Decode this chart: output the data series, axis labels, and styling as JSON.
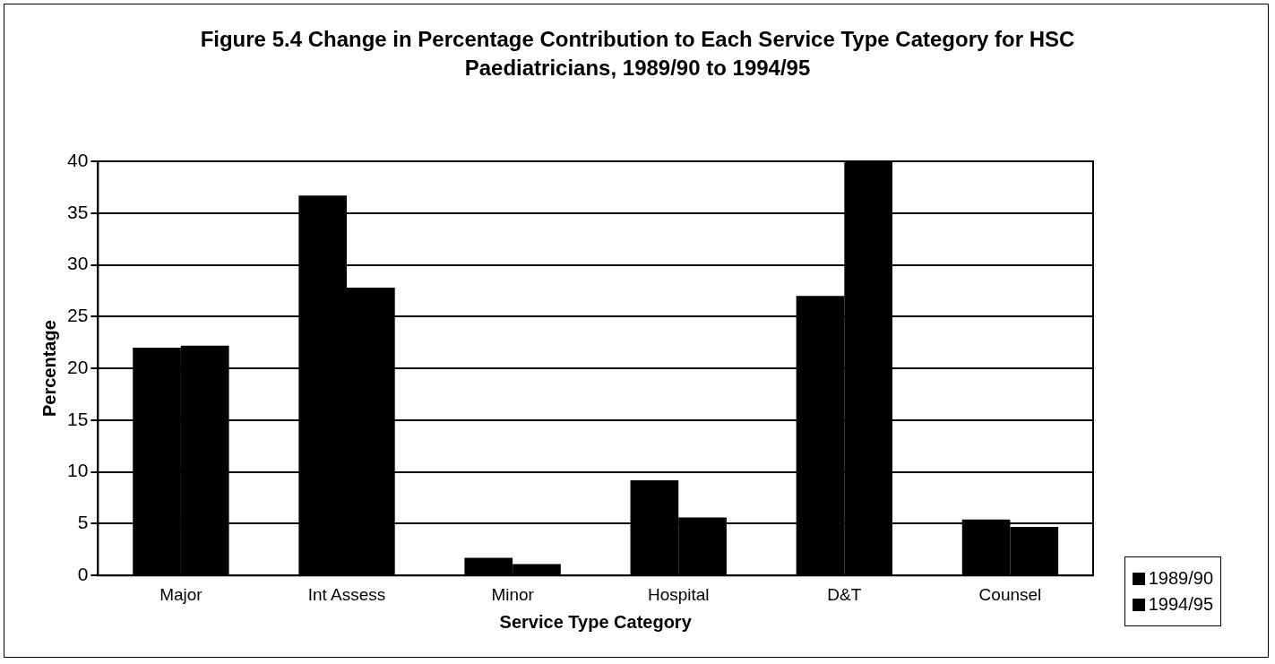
{
  "chart_data": {
    "type": "bar",
    "title": "Figure 5.4 Change in Percentage Contribution to Each Service Type Category for HSC Paediatricians, 1989/90 to 1994/95",
    "xlabel": "Service Type Category",
    "ylabel": "Percentage",
    "categories": [
      "Major",
      "Int Assess",
      "Minor",
      "Hospital",
      "D&T",
      "Counsel"
    ],
    "series": [
      {
        "name": "1989/90",
        "color": "#000000",
        "values": [
          22.0,
          36.7,
          1.7,
          9.2,
          27.0,
          5.4
        ]
      },
      {
        "name": "1994/95",
        "color": "#000000",
        "values": [
          22.2,
          27.8,
          1.1,
          5.6,
          40.0,
          4.7
        ]
      }
    ],
    "ylim": [
      0,
      40
    ],
    "yticks": [
      0,
      5,
      10,
      15,
      20,
      25,
      30,
      35,
      40
    ],
    "grid": "y",
    "legend": "bottom right"
  }
}
